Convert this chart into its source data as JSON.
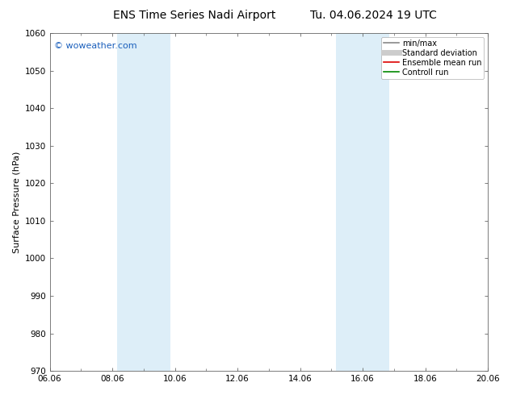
{
  "title_left": "ENS Time Series Nadi Airport",
  "title_right": "Tu. 04.06.2024 19 UTC",
  "ylabel": "Surface Pressure (hPa)",
  "ylim": [
    970,
    1060
  ],
  "yticks": [
    970,
    980,
    990,
    1000,
    1010,
    1020,
    1030,
    1040,
    1050,
    1060
  ],
  "xlim": [
    0,
    14
  ],
  "xtick_positions": [
    0,
    2,
    4,
    6,
    8,
    10,
    12,
    14
  ],
  "xtick_labels": [
    "06.06",
    "08.06",
    "10.06",
    "12.06",
    "14.06",
    "16.06",
    "18.06",
    "20.06"
  ],
  "shade_bands": [
    {
      "xmin": 2.15,
      "xmax": 3.85
    },
    {
      "xmin": 9.15,
      "xmax": 10.85
    }
  ],
  "shade_color": "#ddeef8",
  "watermark": "© woweather.com",
  "watermark_color": "#1a5fbc",
  "legend_items": [
    {
      "label": "min/max",
      "color": "#888888",
      "lw": 1.2
    },
    {
      "label": "Standard deviation",
      "color": "#cccccc",
      "lw": 5
    },
    {
      "label": "Ensemble mean run",
      "color": "#dd0000",
      "lw": 1.2
    },
    {
      "label": "Controll run",
      "color": "#008800",
      "lw": 1.2
    }
  ],
  "background_color": "#ffffff",
  "spine_color": "#666666",
  "title_fontsize": 10,
  "tick_fontsize": 7.5,
  "ylabel_fontsize": 8,
  "legend_fontsize": 7
}
